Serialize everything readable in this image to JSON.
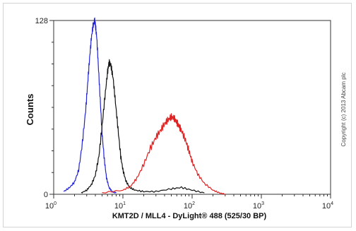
{
  "chart_data": {
    "type": "line",
    "title": "",
    "xlabel": "KMT2D / MLL4 - DyLight® 488 (525/30 BP)",
    "ylabel": "Counts",
    "x_scale": "log",
    "xlim": [
      1,
      10000
    ],
    "ylim": [
      0,
      128
    ],
    "x_ticks": [
      {
        "value": 1,
        "base": "10",
        "exp": "0"
      },
      {
        "value": 10,
        "base": "10",
        "exp": "1"
      },
      {
        "value": 100,
        "base": "10",
        "exp": "2"
      },
      {
        "value": 1000,
        "base": "10",
        "exp": "3"
      },
      {
        "value": 10000,
        "base": "10",
        "exp": "4"
      }
    ],
    "y_ticks": [
      {
        "value": 0,
        "label": "0"
      },
      {
        "value": 128,
        "label": "128"
      }
    ],
    "grid": false,
    "legend": "none",
    "series": [
      {
        "color": "#2323d6",
        "x": [
          1.4,
          1.7,
          2.0,
          2.3,
          2.6,
          2.9,
          3.1,
          3.3,
          3.5,
          3.7,
          3.9,
          4.0,
          4.2,
          4.4,
          4.7,
          5.0,
          5.4,
          5.8,
          6.3,
          7.0,
          8.0
        ],
        "y": [
          2,
          5,
          9,
          18,
          38,
          62,
          82,
          100,
          115,
          124,
          128,
          125,
          115,
          96,
          70,
          45,
          25,
          12,
          5,
          2,
          1
        ]
      },
      {
        "color": "#111111",
        "x": [
          2.5,
          3.0,
          3.5,
          4.0,
          4.5,
          5.0,
          5.5,
          6.0,
          6.3,
          6.7,
          7.2,
          7.8,
          8.5,
          9.3,
          10.0,
          11.0,
          12.5,
          15,
          20,
          30,
          50,
          70,
          100,
          150
        ],
        "y": [
          1,
          3,
          7,
          14,
          28,
          50,
          72,
          90,
          97,
          95,
          86,
          68,
          48,
          28,
          18,
          10,
          5,
          3,
          2,
          2,
          4,
          5,
          3,
          1
        ]
      },
      {
        "color": "#e02222",
        "x": [
          5,
          10,
          13,
          16,
          20,
          25,
          30,
          35,
          40,
          45,
          50,
          55,
          60,
          65,
          70,
          80,
          90,
          100,
          120,
          150,
          200,
          250,
          300
        ],
        "y": [
          1,
          3,
          6,
          12,
          22,
          34,
          42,
          47,
          52,
          55,
          57,
          56,
          53,
          50,
          47,
          40,
          32,
          24,
          15,
          8,
          3,
          1,
          0
        ]
      }
    ]
  },
  "copyright": "Copyright (c) 2013 Abcam plc"
}
